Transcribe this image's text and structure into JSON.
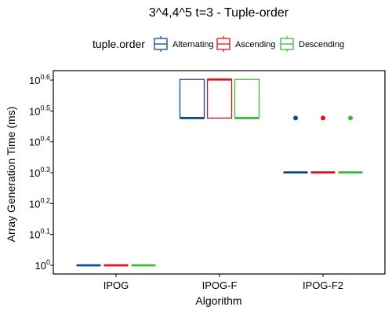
{
  "chart_data": {
    "type": "boxplot",
    "title": "3^4,4^5 t=3 - Tuple-order",
    "xlabel": "Algorithm",
    "ylabel": "Array Generation Time (ms)",
    "y_scale": "log10",
    "ylim": [
      0,
      0.6
    ],
    "y_ticks": [
      {
        "base": "10",
        "exp": "0.6",
        "value": 0.6
      },
      {
        "base": "10",
        "exp": "0.5",
        "value": 0.5
      },
      {
        "base": "10",
        "exp": "0.4",
        "value": 0.4
      },
      {
        "base": "10",
        "exp": "0.3",
        "value": 0.3
      },
      {
        "base": "10",
        "exp": "0.2",
        "value": 0.2
      },
      {
        "base": "10",
        "exp": "0.1",
        "value": 0.1
      },
      {
        "base": "10",
        "exp": "0",
        "value": 0.0
      }
    ],
    "categories": [
      "IPOG",
      "IPOG-F",
      "IPOG-F2"
    ],
    "legend": {
      "title": "tuple.order",
      "position": "top"
    },
    "series": [
      {
        "name": "Alternating",
        "color": "#0b4a8f",
        "boxes": [
          {
            "q1": 0.0,
            "median": 0.0,
            "q3": 0.0,
            "outliers": []
          },
          {
            "q1": 0.477,
            "median": 0.477,
            "q3": 0.602,
            "outliers": []
          },
          {
            "q1": 0.301,
            "median": 0.301,
            "q3": 0.301,
            "outliers": [
              0.477
            ]
          }
        ]
      },
      {
        "name": "Ascending",
        "color": "#e3101b",
        "boxes": [
          {
            "q1": 0.0,
            "median": 0.0,
            "q3": 0.0,
            "outliers": []
          },
          {
            "q1": 0.477,
            "median": 0.602,
            "q3": 0.602,
            "outliers": []
          },
          {
            "q1": 0.301,
            "median": 0.301,
            "q3": 0.301,
            "outliers": [
              0.477
            ]
          }
        ]
      },
      {
        "name": "Descending",
        "color": "#3cb93c",
        "boxes": [
          {
            "q1": 0.0,
            "median": 0.0,
            "q3": 0.0,
            "outliers": []
          },
          {
            "q1": 0.477,
            "median": 0.477,
            "q3": 0.602,
            "outliers": []
          },
          {
            "q1": 0.301,
            "median": 0.301,
            "q3": 0.301,
            "outliers": [
              0.477
            ]
          }
        ]
      }
    ]
  }
}
